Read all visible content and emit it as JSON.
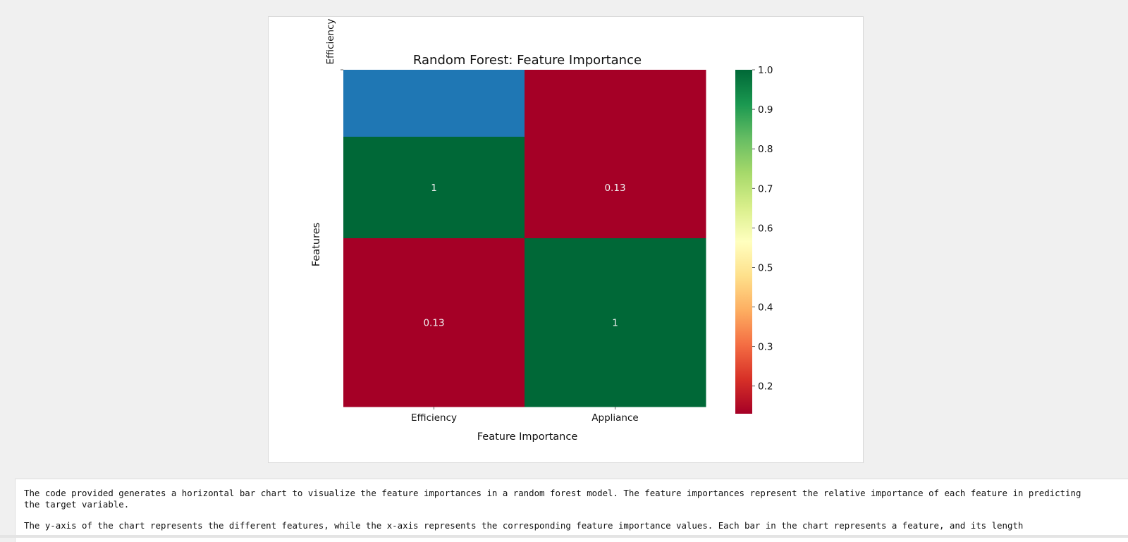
{
  "chart_data": {
    "type": "heatmap",
    "title": "Random Forest: Feature Importance",
    "xlabel": "Feature Importance",
    "ylabel": "Features",
    "x_categories": [
      "Efficiency",
      "Appliance"
    ],
    "y_tick_labels": [
      "Efficiency"
    ],
    "rows": [
      {
        "values": [
          null,
          null
        ]
      },
      {
        "values": [
          1,
          0.13
        ],
        "annotations": [
          "1",
          "0.13"
        ]
      },
      {
        "values": [
          0.13,
          1
        ],
        "annotations": [
          "0.13",
          "1"
        ]
      }
    ],
    "row_fill_colors": [
      [
        "#1f77b4",
        "#a50026"
      ],
      [
        "#006837",
        "#a50026"
      ],
      [
        "#a50026",
        "#006837"
      ]
    ],
    "colorbar": {
      "colormap": "RdYlGn",
      "range": [
        0.13,
        1.0
      ],
      "ticks": [
        "1.0",
        "0.9",
        "0.8",
        "0.7",
        "0.6",
        "0.5",
        "0.4",
        "0.3",
        "0.2"
      ]
    }
  },
  "explanation": {
    "paragraphs": [
      "The code provided generates a horizontal bar chart to visualize the feature importances in a random forest model. The feature importances represent the relative importance of each feature in predicting\nthe target variable.",
      "The y-axis of the chart represents the different features, while the x-axis represents the corresponding feature importance values. Each bar in the chart represents a feature, and its length"
    ]
  }
}
